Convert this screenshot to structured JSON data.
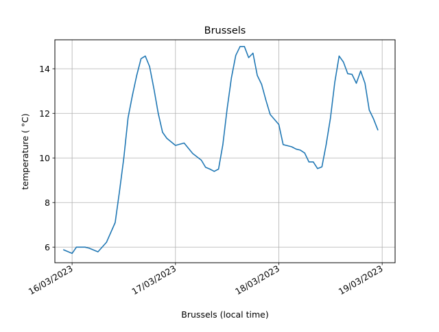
{
  "chart_data": {
    "type": "line",
    "title": "Brussels",
    "xlabel": "Brussels (local time)",
    "ylabel": "temperature ( °C)",
    "x_ticks": [
      "16/03/2023",
      "17/03/2023",
      "18/03/2023",
      "19/03/2023"
    ],
    "y_ticks": [
      6,
      8,
      10,
      12,
      14
    ],
    "xlim": [
      "2023-03-15 20:00",
      "2023-03-19 03:00"
    ],
    "ylim": [
      5.3,
      15.3
    ],
    "grid": true,
    "line_color": "#1f77b4",
    "series": [
      {
        "x": [
          "2023-03-15 22:00",
          "2023-03-16 00:00",
          "2023-03-16 01:00",
          "2023-03-16 03:00",
          "2023-03-16 04:00",
          "2023-03-16 06:00",
          "2023-03-16 08:00",
          "2023-03-16 10:00",
          "2023-03-16 11:00",
          "2023-03-16 12:00",
          "2023-03-16 13:00",
          "2023-03-16 14:00",
          "2023-03-16 15:00",
          "2023-03-16 16:00",
          "2023-03-16 17:00",
          "2023-03-16 18:00",
          "2023-03-16 19:00",
          "2023-03-16 20:00",
          "2023-03-16 21:00",
          "2023-03-16 22:00",
          "2023-03-17 00:00",
          "2023-03-17 02:00",
          "2023-03-17 04:00",
          "2023-03-17 06:00",
          "2023-03-17 07:00",
          "2023-03-17 08:00",
          "2023-03-17 09:00",
          "2023-03-17 10:00",
          "2023-03-17 11:00",
          "2023-03-17 12:00",
          "2023-03-17 13:00",
          "2023-03-17 14:00",
          "2023-03-17 15:00",
          "2023-03-17 16:00",
          "2023-03-17 17:00",
          "2023-03-17 18:00",
          "2023-03-17 19:00",
          "2023-03-17 20:00",
          "2023-03-17 21:00",
          "2023-03-17 22:00",
          "2023-03-18 00:00",
          "2023-03-18 01:00",
          "2023-03-18 02:00",
          "2023-03-18 03:00",
          "2023-03-18 04:00",
          "2023-03-18 05:00",
          "2023-03-18 06:00",
          "2023-03-18 07:00",
          "2023-03-18 08:00",
          "2023-03-18 09:00",
          "2023-03-18 10:00",
          "2023-03-18 11:00",
          "2023-03-18 12:00",
          "2023-03-18 13:00",
          "2023-03-18 14:00",
          "2023-03-18 15:00",
          "2023-03-18 16:00",
          "2023-03-18 17:00",
          "2023-03-18 18:00",
          "2023-03-18 19:00",
          "2023-03-18 20:00",
          "2023-03-18 21:00",
          "2023-03-18 22:00",
          "2023-03-18 23:00"
        ],
        "values": [
          5.88,
          5.72,
          6.0,
          6.0,
          5.95,
          5.79,
          6.22,
          7.1,
          8.5,
          10.0,
          11.8,
          12.8,
          13.7,
          14.45,
          14.57,
          14.1,
          13.1,
          12.0,
          11.15,
          10.88,
          10.56,
          10.67,
          10.2,
          9.9,
          9.58,
          9.5,
          9.4,
          9.5,
          10.6,
          12.2,
          13.6,
          14.6,
          15.0,
          15.0,
          14.5,
          14.7,
          13.7,
          13.3,
          12.6,
          11.95,
          11.5,
          10.6,
          10.55,
          10.5,
          10.4,
          10.35,
          10.22,
          9.82,
          9.82,
          9.52,
          9.6,
          10.6,
          11.8,
          13.4,
          14.57,
          14.3,
          13.78,
          13.75,
          13.35,
          13.9,
          13.35,
          12.15,
          11.75,
          11.25
        ]
      }
    ]
  }
}
